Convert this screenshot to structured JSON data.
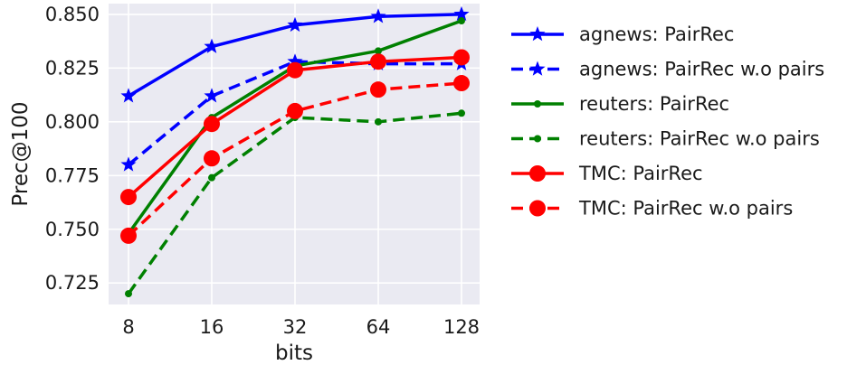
{
  "chart_data": {
    "type": "line",
    "title": "",
    "xlabel": "bits",
    "ylabel": "Prec@100",
    "x": [
      8,
      16,
      32,
      64,
      128
    ],
    "x_tick_labels": [
      "8",
      "16",
      "32",
      "64",
      "128"
    ],
    "x_scale": "log2",
    "y_ticks": [
      0.725,
      0.75,
      0.775,
      0.8,
      0.825,
      0.85
    ],
    "y_tick_labels": [
      "0.725",
      "0.750",
      "0.775",
      "0.800",
      "0.825",
      "0.850"
    ],
    "ylim": [
      0.715,
      0.855
    ],
    "grid": true,
    "background": "#eaeaf2",
    "legend_position": "outside-right",
    "series": [
      {
        "name": "agnews: PairRec",
        "values": [
          0.812,
          0.835,
          0.845,
          0.849,
          0.85
        ],
        "color": "#0000ff",
        "linestyle": "solid",
        "marker": "star"
      },
      {
        "name": "agnews: PairRec w.o pairs",
        "values": [
          0.78,
          0.812,
          0.828,
          0.827,
          0.827
        ],
        "color": "#0000ff",
        "linestyle": "dashed",
        "marker": "star"
      },
      {
        "name": "reuters: PairRec",
        "values": [
          0.748,
          0.802,
          0.826,
          0.833,
          0.847
        ],
        "color": "#008000",
        "linestyle": "solid",
        "marker": "dot"
      },
      {
        "name": "reuters: PairRec w.o pairs",
        "values": [
          0.72,
          0.774,
          0.802,
          0.8,
          0.804
        ],
        "color": "#008000",
        "linestyle": "dashed",
        "marker": "dot"
      },
      {
        "name": "TMC: PairRec",
        "values": [
          0.765,
          0.799,
          0.824,
          0.828,
          0.83
        ],
        "color": "#ff0000",
        "linestyle": "solid",
        "marker": "circle"
      },
      {
        "name": "TMC: PairRec w.o pairs",
        "values": [
          0.747,
          0.783,
          0.805,
          0.815,
          0.818
        ],
        "color": "#ff0000",
        "linestyle": "dashed",
        "marker": "circle"
      }
    ]
  }
}
